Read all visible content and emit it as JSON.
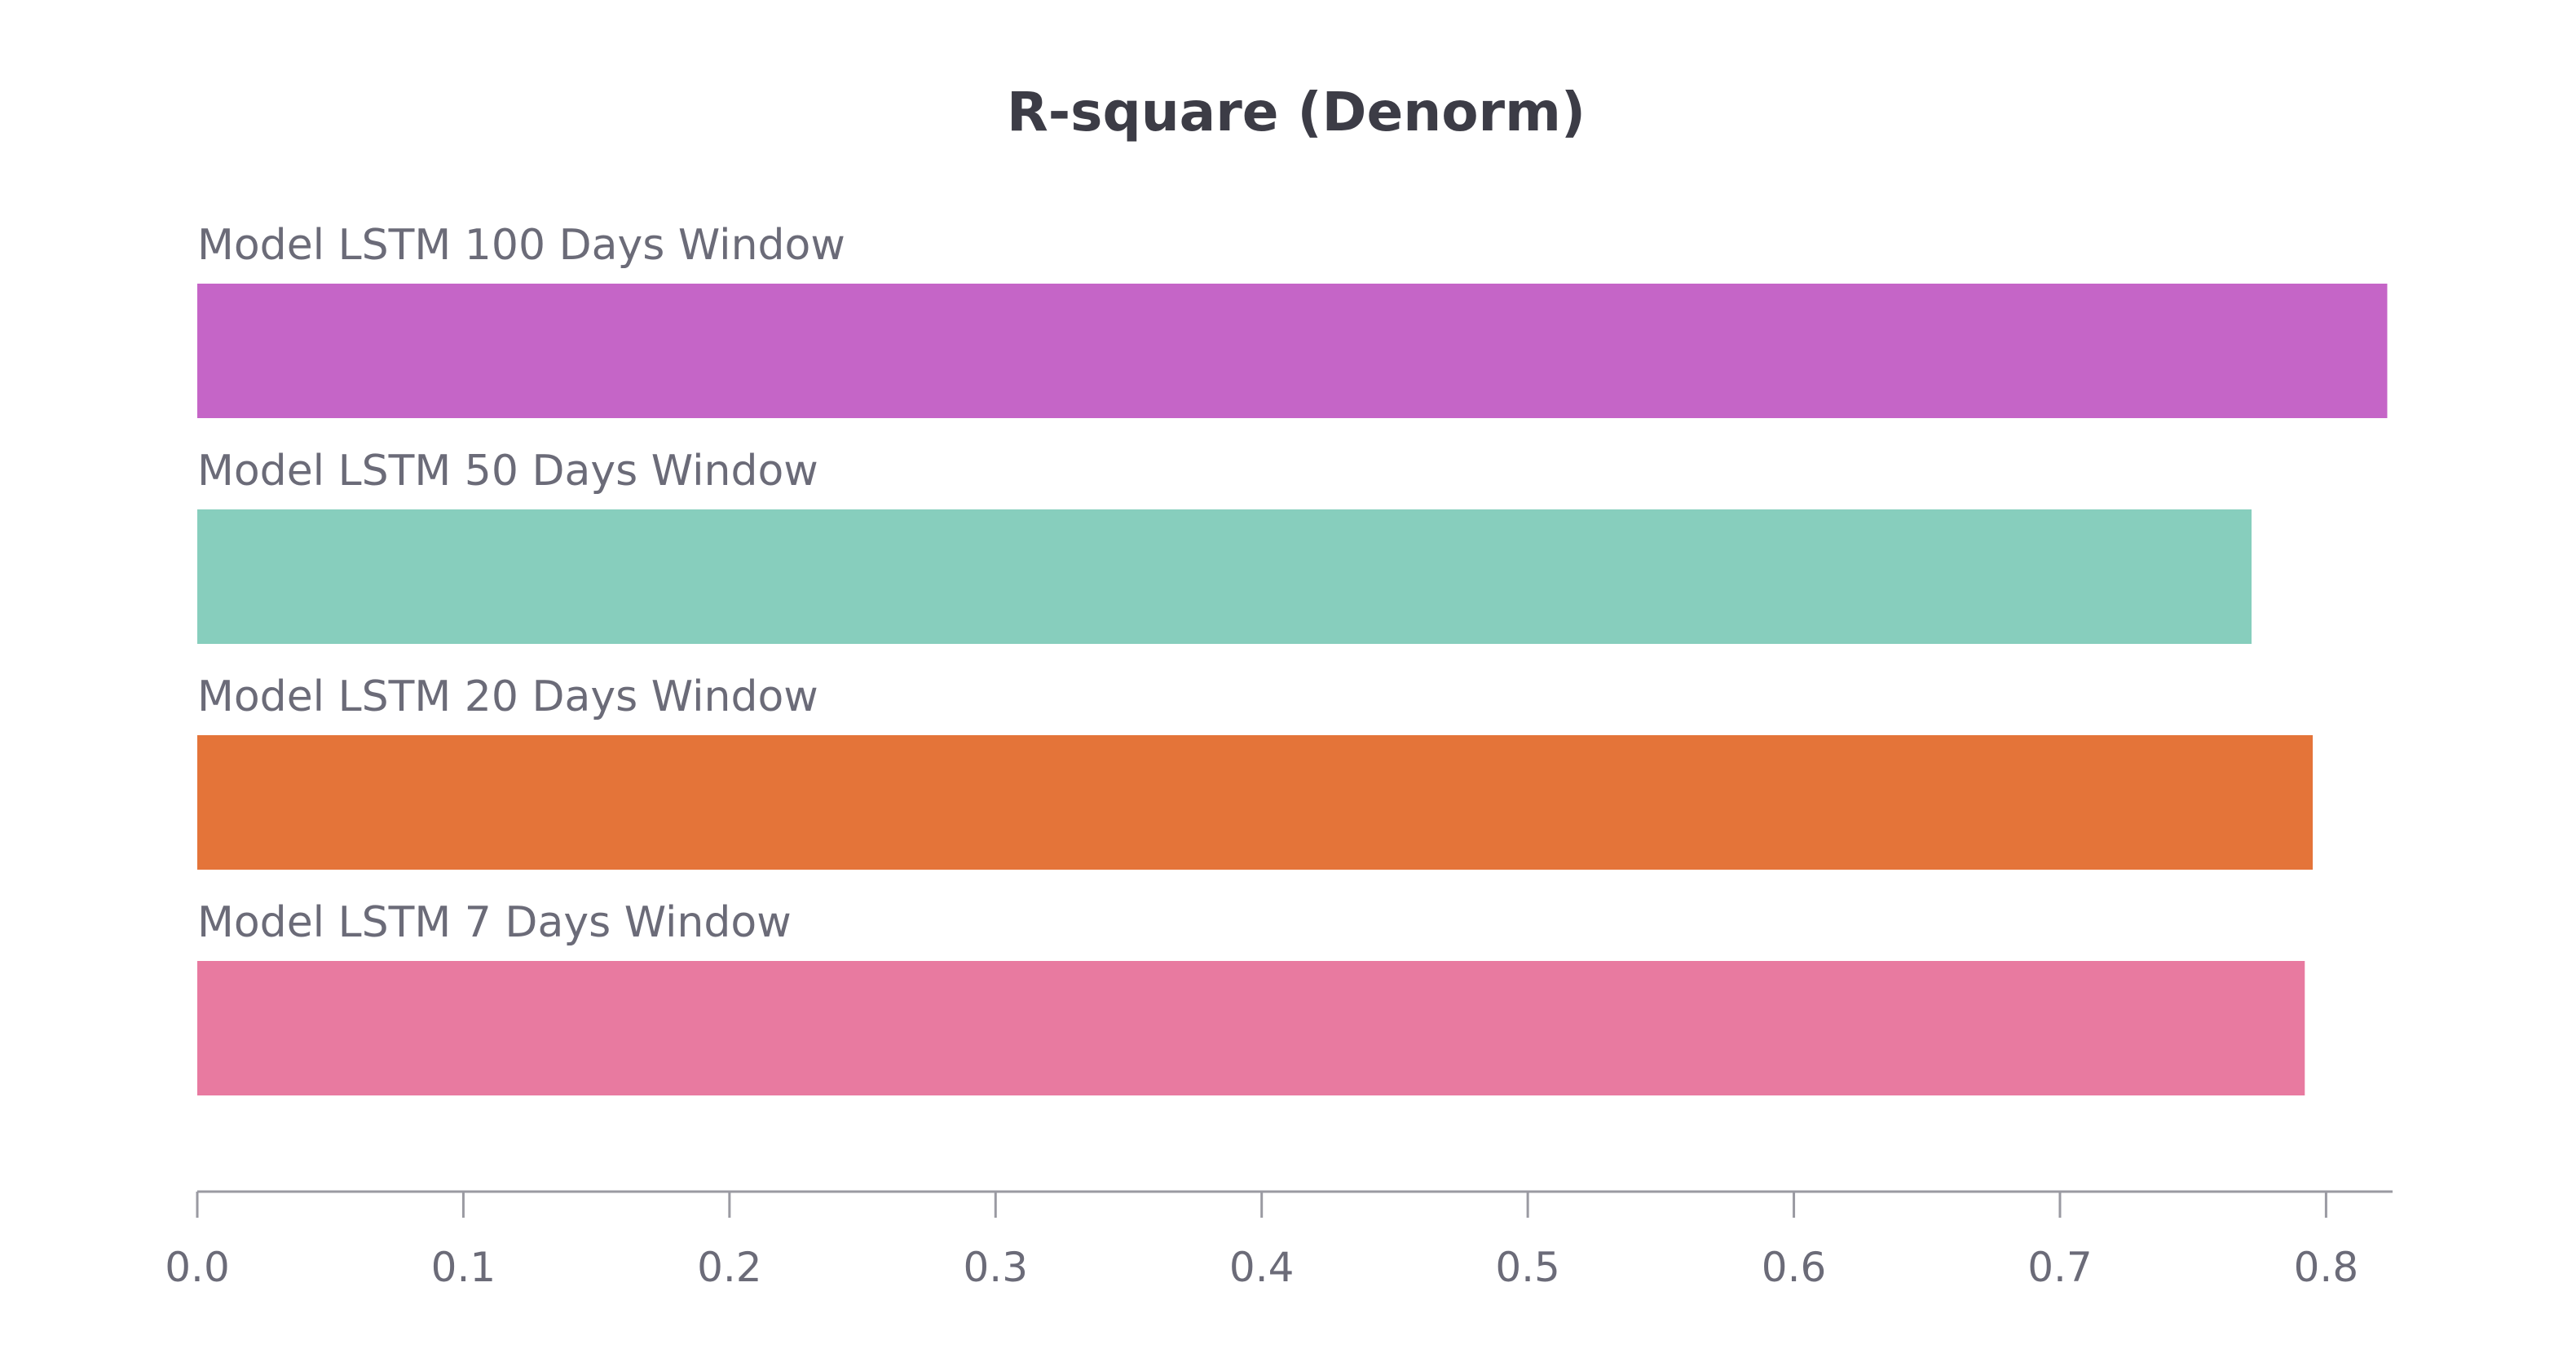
{
  "chart_data": {
    "type": "bar",
    "orientation": "horizontal",
    "title": "R-square (Denorm)",
    "xlabel": "",
    "ylabel": "",
    "xlim": [
      0,
      0.825
    ],
    "xticks": [
      0.0,
      0.1,
      0.2,
      0.3,
      0.4,
      0.5,
      0.6,
      0.7,
      0.8
    ],
    "xtick_labels": [
      "0.0",
      "0.1",
      "0.2",
      "0.3",
      "0.4",
      "0.5",
      "0.6",
      "0.7",
      "0.8"
    ],
    "grid": false,
    "legend": "none",
    "categories": [
      "Model LSTM 100 Days Window",
      "Model LSTM 50 Days Window",
      "Model LSTM 20 Days Window",
      "Model LSTM 7 Days Window"
    ],
    "values": [
      0.823,
      0.772,
      0.795,
      0.792
    ],
    "colors": [
      "#c565c7",
      "#87cebd",
      "#e47439",
      "#e87aa0"
    ]
  }
}
